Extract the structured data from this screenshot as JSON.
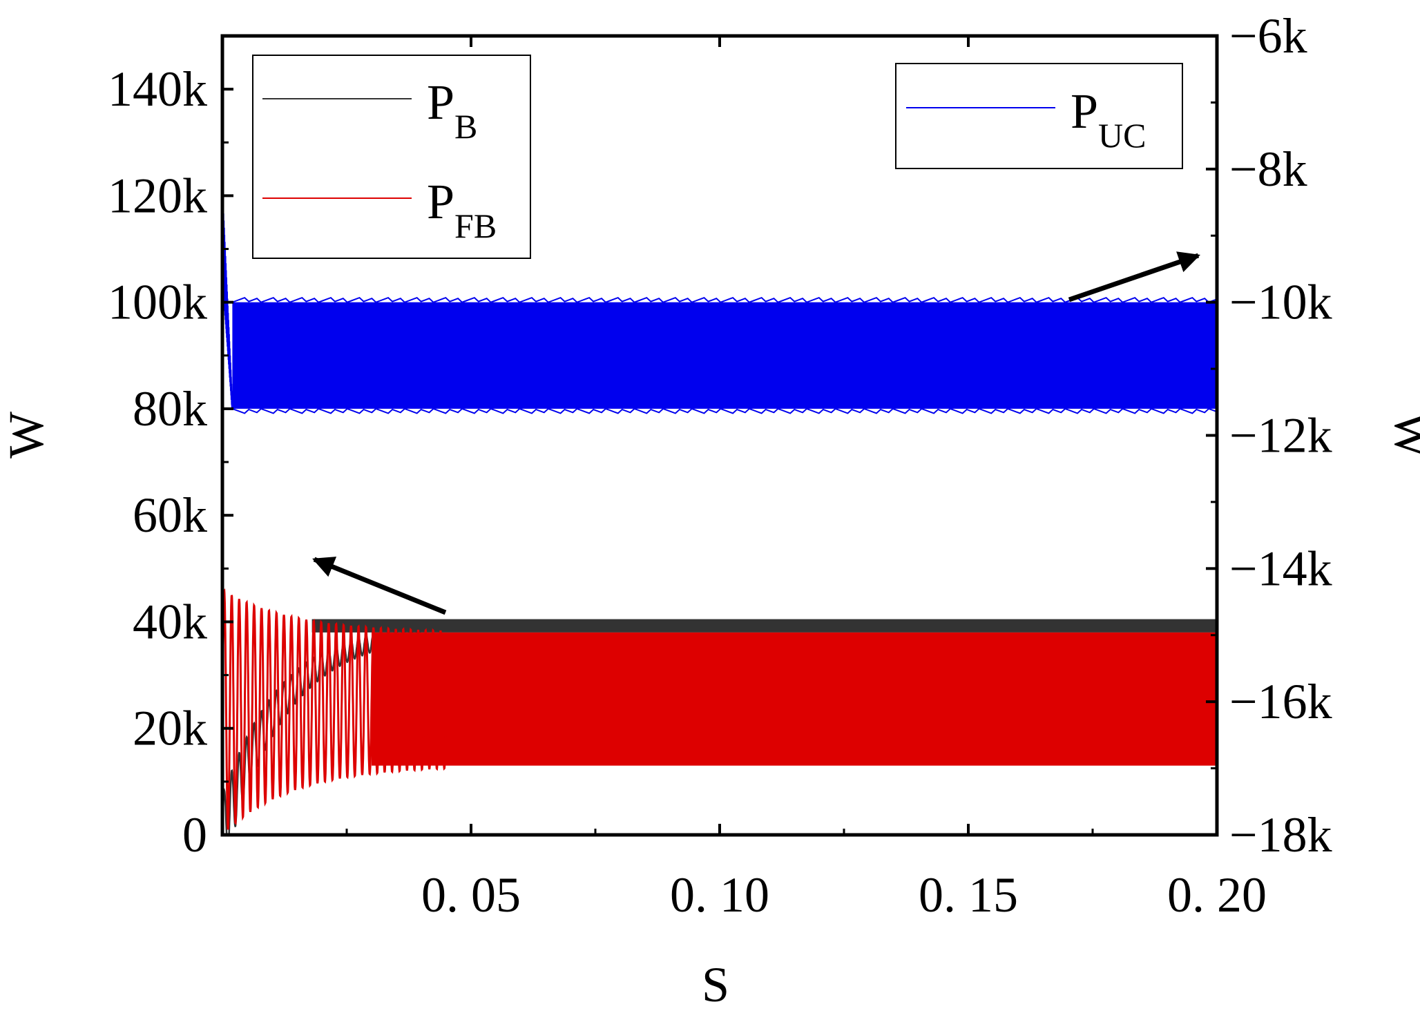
{
  "chart_data": {
    "type": "line",
    "title": "",
    "xlabel": "S",
    "ylabel_left": "W",
    "ylabel_right": "W",
    "xlim": [
      0,
      0.2
    ],
    "ylim_left": [
      0,
      150000
    ],
    "ylim_right": [
      -18000,
      -6000
    ],
    "x_ticks": [
      {
        "value": 0.05,
        "label": "0. 05"
      },
      {
        "value": 0.1,
        "label": "0. 10"
      },
      {
        "value": 0.15,
        "label": "0. 15"
      },
      {
        "value": 0.2,
        "label": "0. 20"
      }
    ],
    "y_left_ticks": [
      {
        "value": 0,
        "label": "0"
      },
      {
        "value": 20000,
        "label": "20k"
      },
      {
        "value": 40000,
        "label": "40k"
      },
      {
        "value": 60000,
        "label": "60k"
      },
      {
        "value": 80000,
        "label": "80k"
      },
      {
        "value": 100000,
        "label": "100k"
      },
      {
        "value": 120000,
        "label": "120k"
      },
      {
        "value": 140000,
        "label": "140k"
      }
    ],
    "y_right_ticks": [
      {
        "value": -6000,
        "label": "−6k"
      },
      {
        "value": -8000,
        "label": "−8k"
      },
      {
        "value": -10000,
        "label": "−10k"
      },
      {
        "value": -12000,
        "label": "−12k"
      },
      {
        "value": -14000,
        "label": "−14k"
      },
      {
        "value": -16000,
        "label": "−16k"
      },
      {
        "value": -18000,
        "label": "−18k"
      }
    ],
    "series": [
      {
        "name": "P_B",
        "label_main": "P",
        "label_sub": "B",
        "color": "#333333",
        "axis": "left",
        "steady_min": 38000,
        "steady_max": 40500,
        "initial_value": 0,
        "settle_time": 0.03
      },
      {
        "name": "P_FB",
        "label_main": "P",
        "label_sub": "FB",
        "color": "#dd0000",
        "axis": "left",
        "steady_min": 13000,
        "steady_max": 38000,
        "initial_min": 0,
        "initial_max": 46000,
        "settle_time": 0.04
      },
      {
        "name": "P_UC",
        "label_main": "P",
        "label_sub": "UC",
        "color": "#0000ee",
        "axis": "right",
        "steady_min": -11600,
        "steady_max": -10000,
        "initial_value": -9000,
        "settle_time": 0.002
      }
    ],
    "legends": [
      {
        "position": "top-left",
        "series": [
          "P_B",
          "P_FB"
        ]
      },
      {
        "position": "top-right",
        "series": [
          "P_UC"
        ]
      }
    ],
    "annotations": [
      {
        "type": "arrow",
        "note": "arrow toward right axis",
        "target_series": "P_UC"
      },
      {
        "type": "arrow",
        "note": "arrow toward left axis",
        "target_series": "P_B"
      }
    ]
  }
}
